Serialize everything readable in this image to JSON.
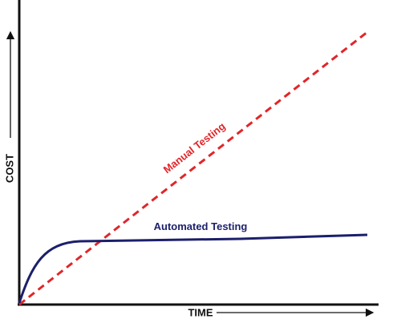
{
  "axes": {
    "y_label": "COST",
    "x_label": "TIME"
  },
  "curves": [
    {
      "label": "Manual Testing",
      "color": "#e0262a"
    },
    {
      "label": "Automated Testing",
      "color": "#1b1f6b"
    }
  ]
}
